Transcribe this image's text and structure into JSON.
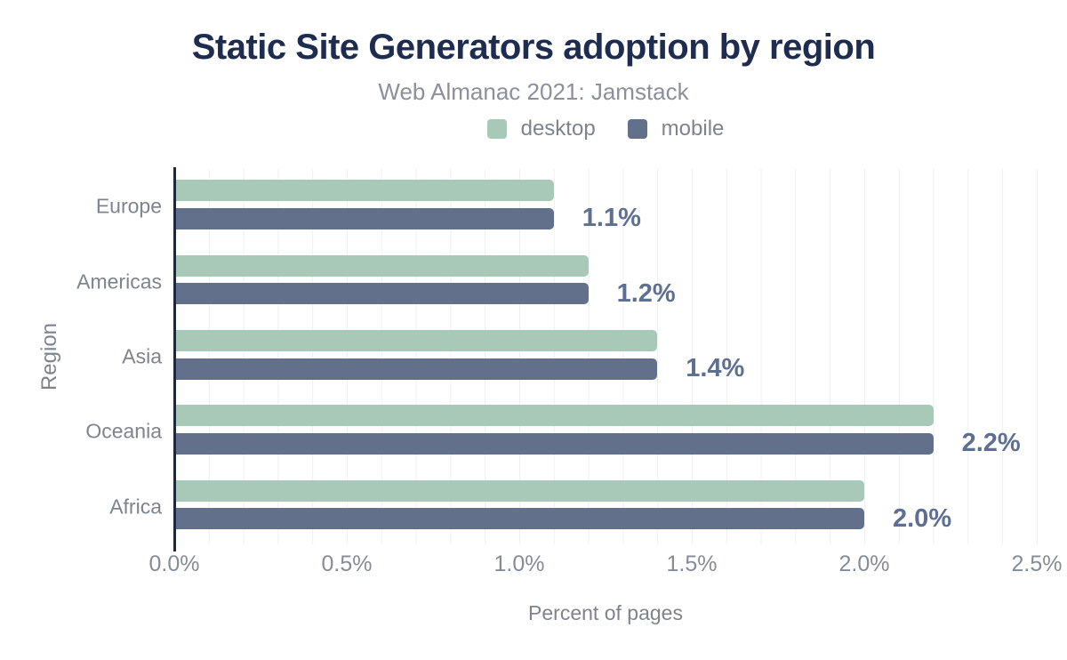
{
  "chart_data": {
    "type": "bar",
    "orientation": "horizontal",
    "title": "Static Site Generators adoption by region",
    "subtitle": "Web Almanac 2021: Jamstack",
    "xlabel": "Percent of pages",
    "ylabel": "Region",
    "categories": [
      "Europe",
      "Americas",
      "Asia",
      "Oceania",
      "Africa"
    ],
    "series": [
      {
        "name": "desktop",
        "color": "#a8c9b7",
        "values": [
          1.1,
          1.2,
          1.4,
          2.2,
          2.0
        ]
      },
      {
        "name": "mobile",
        "color": "#62708c",
        "values": [
          1.1,
          1.2,
          1.4,
          2.2,
          2.0
        ]
      }
    ],
    "data_labels": [
      "1.1%",
      "1.2%",
      "1.4%",
      "2.2%",
      "2.0%"
    ],
    "x_ticks": [
      "0.0%",
      "0.5%",
      "1.0%",
      "1.5%",
      "2.0%",
      "2.5%"
    ],
    "xlim": [
      0,
      2.5
    ],
    "minor_grid_step": 0.1,
    "grid": "vertical-minor",
    "legend_position": "top-center"
  },
  "colors": {
    "background": "#ffffff",
    "title": "#1e2d4f",
    "subtitle": "#8b909a",
    "axis_text": "#868c96",
    "category_text": "#7e848d",
    "data_label": "#5d6f92",
    "axis_line": "#16294a",
    "gridline": "#eff0f3"
  }
}
